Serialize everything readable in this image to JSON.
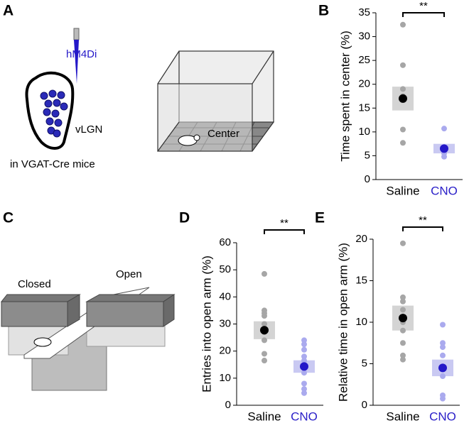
{
  "panel_labels": [
    "A",
    "B",
    "C",
    "D",
    "E"
  ],
  "diagram_a": {
    "injection": "hM4Di",
    "region": "vLGN",
    "mouse_line": "in VGAT-Cre mice",
    "zone": "Center"
  },
  "diagram_c": {
    "closed_arm": "Closed",
    "open_arm": "Open"
  },
  "chart_data": [
    {
      "type": "strip",
      "y_label": "Time spent in center (%)",
      "categories": [
        "Saline",
        "CNO"
      ],
      "category_colors": [
        "#000000",
        "#2a1fc8"
      ],
      "points": [
        [
          32.5,
          24,
          19,
          17.5,
          10.5,
          7.7
        ],
        [
          10.7,
          6.5,
          6,
          5.5,
          4.8
        ]
      ],
      "means": [
        17,
        6.5
      ],
      "sem": [
        2.5,
        1
      ],
      "point_colors": [
        "#a6a6a6",
        "#aaaaee"
      ],
      "mean_colors": [
        "#000000",
        "#2418c8"
      ],
      "box_colors": [
        "#d4d4d4",
        "#c9c9f2"
      ],
      "ylim": [
        0,
        35
      ],
      "yticks": [
        0,
        5,
        10,
        15,
        20,
        25,
        30,
        35
      ],
      "significance": "**"
    },
    {
      "type": "strip",
      "y_label": "Entries into open arm (%)",
      "categories": [
        "Saline",
        "CNO"
      ],
      "category_colors": [
        "#000000",
        "#2a1fc8"
      ],
      "points": [
        [
          48.5,
          35,
          34,
          33,
          30,
          27,
          24,
          19,
          16.5
        ],
        [
          24,
          22.5,
          20.5,
          18,
          16.5,
          14.5,
          12,
          8,
          6,
          4.5
        ]
      ],
      "means": [
        27.7,
        14.3
      ],
      "sem": [
        3.3,
        2.3
      ],
      "point_colors": [
        "#a6a6a6",
        "#aaaaee"
      ],
      "mean_colors": [
        "#000000",
        "#2418c8"
      ],
      "box_colors": [
        "#d4d4d4",
        "#c9c9f2"
      ],
      "ylim": [
        0,
        60
      ],
      "yticks": [
        0,
        10,
        20,
        30,
        40,
        50,
        60
      ],
      "significance": "**"
    },
    {
      "type": "strip",
      "y_label": "Relative time in open arm (%)",
      "categories": [
        "Saline",
        "CNO"
      ],
      "category_colors": [
        "#000000",
        "#2a1fc8"
      ],
      "points": [
        [
          19.5,
          13,
          12.5,
          11.5,
          10,
          9,
          7.5,
          6,
          5.5
        ],
        [
          9.7,
          7.5,
          7,
          6,
          4.5,
          3.5,
          1.2,
          0.8
        ]
      ],
      "means": [
        10.5,
        4.5
      ],
      "sem": [
        1.5,
        1
      ],
      "point_colors": [
        "#a6a6a6",
        "#aaaaee"
      ],
      "mean_colors": [
        "#000000",
        "#2418c8"
      ],
      "box_colors": [
        "#d4d4d4",
        "#c9c9f2"
      ],
      "ylim": [
        0,
        20
      ],
      "yticks": [
        0,
        5,
        10,
        15,
        20
      ],
      "significance": "**"
    }
  ]
}
